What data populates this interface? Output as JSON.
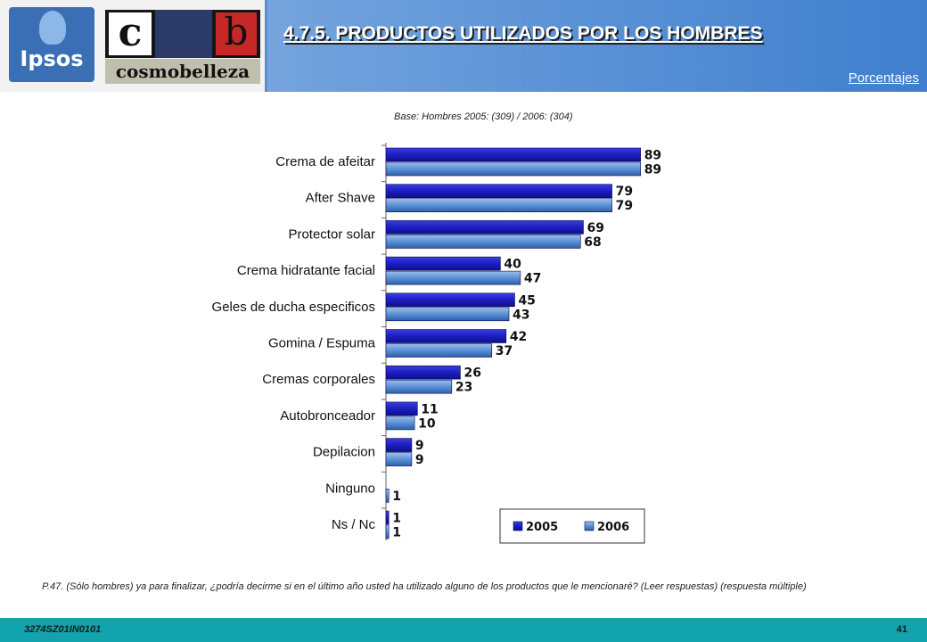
{
  "header": {
    "title": "4.7.5. PRODUCTOS UTILIZADOS POR LOS HOMBRES",
    "units": "Porcentajes",
    "logo_ipsos": "Ipsos",
    "logo_cb_left": "c",
    "logo_cb_right": "b",
    "logo_cosmo": "cosmobelleza"
  },
  "base_note": "Base: Hombres 2005: (309) / 2006: (304)",
  "chart_data": {
    "type": "bar",
    "orientation": "horizontal",
    "categories": [
      "Crema de afeitar",
      "After Shave",
      "Protector solar",
      "Crema hidratante facial",
      "Geles de ducha especificos",
      "Gomina / Espuma",
      "Cremas corporales",
      "Autobronceador",
      "Depilacion",
      "Ninguno",
      "Ns / Nc"
    ],
    "series": [
      {
        "name": "2005",
        "values": [
          89,
          79,
          69,
          40,
          45,
          42,
          26,
          11,
          9,
          null,
          1
        ],
        "color": "#1c1fbf"
      },
      {
        "name": "2006",
        "values": [
          89,
          79,
          68,
          47,
          43,
          37,
          23,
          10,
          9,
          1,
          1
        ],
        "color": "#5b90d6"
      }
    ],
    "xlim": [
      0,
      100
    ],
    "grid": false,
    "legend": "bottom-right"
  },
  "question_note": "P.47. (Sólo hombres) ya para finalizar, ¿podría decirme si en el último año usted ha utilizado alguno de los productos que le mencionaré? (Leer respuestas) (respuesta múltiple)",
  "footer": {
    "code": "3274SZ01IN0101",
    "page": "41"
  }
}
